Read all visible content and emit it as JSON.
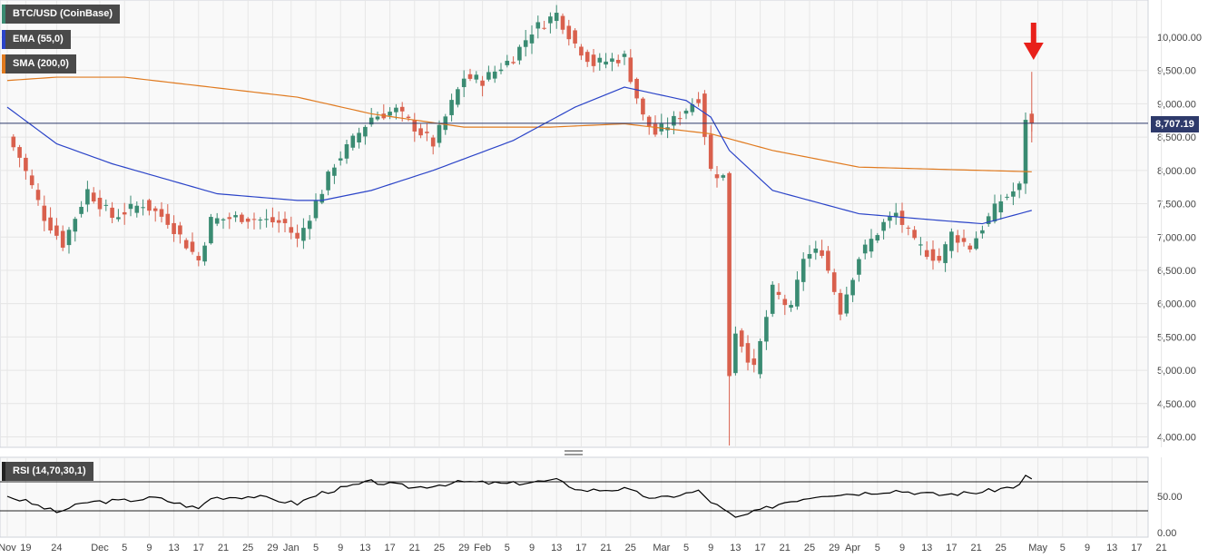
{
  "legend": {
    "symbol": "BTC/USD (CoinBase)",
    "ema": "EMA (55,0)",
    "sma": "SMA (200,0)",
    "rsi": "RSI (14,70,30,1)"
  },
  "colors": {
    "up": "#3a8b72",
    "down": "#d9604d",
    "ema": "#2b44c8",
    "sma": "#e07a1f",
    "priceLine": "#2e3a6b",
    "arrow": "#e8201a",
    "grid": "#e6e6e6"
  },
  "icons": {
    "annotation": "down-arrow-icon",
    "divider": "drag-handle-icon"
  },
  "last_price_label": "8,707.19",
  "chart_data": [
    {
      "type": "candlestick",
      "title": "BTC/USD (CoinBase)",
      "x_tick_labels": [
        "Nov",
        "19",
        "24",
        "Dec",
        "5",
        "9",
        "13",
        "17",
        "21",
        "25",
        "29",
        "Jan",
        "5",
        "9",
        "13",
        "17",
        "21",
        "25",
        "29",
        "Feb",
        "5",
        "9",
        "13",
        "17",
        "21",
        "25",
        "Mar",
        "5",
        "9",
        "13",
        "17",
        "21",
        "25",
        "29",
        "Apr",
        "5",
        "9",
        "13",
        "17",
        "21",
        "25",
        "May",
        "5",
        "9",
        "13",
        "17",
        "21"
      ],
      "y_tick_labels": [
        "10,000.00",
        "9,500.00",
        "9,000.00",
        "8,500.00",
        "8,000.00",
        "7,500.00",
        "7,000.00",
        "6,500.00",
        "6,000.00",
        "5,500.00",
        "5,000.00",
        "4,500.00",
        "4,000.00"
      ],
      "ylim": [
        3900,
        10550
      ],
      "grid": true,
      "close_waypoints": [
        [
          "2019-11-16",
          8500
        ],
        [
          "2019-11-18",
          8200
        ],
        [
          "2019-11-22",
          7300
        ],
        [
          "2019-11-25",
          6900
        ],
        [
          "2019-11-29",
          7700
        ],
        [
          "2019-12-03",
          7300
        ],
        [
          "2019-12-08",
          7500
        ],
        [
          "2019-12-12",
          7250
        ],
        [
          "2019-12-17",
          6650
        ],
        [
          "2019-12-19",
          7250
        ],
        [
          "2019-12-24",
          7300
        ],
        [
          "2019-12-31",
          7200
        ],
        [
          "2020-01-02",
          6950
        ],
        [
          "2020-01-06",
          7700
        ],
        [
          "2020-01-08",
          8100
        ],
        [
          "2020-01-14",
          8800
        ],
        [
          "2020-01-18",
          8900
        ],
        [
          "2020-01-24",
          8400
        ],
        [
          "2020-01-29",
          9400
        ],
        [
          "2020-02-01",
          9350
        ],
        [
          "2020-02-06",
          9700
        ],
        [
          "2020-02-09",
          10100
        ],
        [
          "2020-02-13",
          10350
        ],
        [
          "2020-02-16",
          9900
        ],
        [
          "2020-02-19",
          9600
        ],
        [
          "2020-02-24",
          9700
        ],
        [
          "2020-02-27",
          8800
        ],
        [
          "2020-02-29",
          8550
        ],
        [
          "2020-03-03",
          8750
        ],
        [
          "2020-03-07",
          9100
        ],
        [
          "2020-03-09",
          8000
        ],
        [
          "2020-03-11",
          7900
        ],
        [
          "2020-03-12",
          4950
        ],
        [
          "2020-03-13",
          5600
        ],
        [
          "2020-03-16",
          5000
        ],
        [
          "2020-03-19",
          6200
        ],
        [
          "2020-03-22",
          5900
        ],
        [
          "2020-03-24",
          6700
        ],
        [
          "2020-03-27",
          6800
        ],
        [
          "2020-03-30",
          5900
        ],
        [
          "2020-04-02",
          6700
        ],
        [
          "2020-04-06",
          7200
        ],
        [
          "2020-04-08",
          7350
        ],
        [
          "2020-04-11",
          6900
        ],
        [
          "2020-04-15",
          6650
        ],
        [
          "2020-04-17",
          7050
        ],
        [
          "2020-04-20",
          6850
        ],
        [
          "2020-04-22",
          7150
        ],
        [
          "2020-04-25",
          7550
        ],
        [
          "2020-04-28",
          7750
        ],
        [
          "2020-04-29",
          8800
        ],
        [
          "2020-04-30",
          8707
        ]
      ],
      "ema_55": [
        [
          "2019-11-16",
          8950
        ],
        [
          "2019-11-24",
          8400
        ],
        [
          "2019-12-03",
          8100
        ],
        [
          "2019-12-20",
          7650
        ],
        [
          "2020-01-02",
          7550
        ],
        [
          "2020-01-06",
          7550
        ],
        [
          "2020-01-14",
          7700
        ],
        [
          "2020-01-24",
          8000
        ],
        [
          "2020-02-06",
          8450
        ],
        [
          "2020-02-16",
          8950
        ],
        [
          "2020-02-24",
          9250
        ],
        [
          "2020-03-05",
          9050
        ],
        [
          "2020-03-09",
          8800
        ],
        [
          "2020-03-12",
          8300
        ],
        [
          "2020-03-19",
          7700
        ],
        [
          "2020-04-02",
          7350
        ],
        [
          "2020-04-15",
          7250
        ],
        [
          "2020-04-22",
          7200
        ],
        [
          "2020-04-30",
          7400
        ]
      ],
      "sma_200": [
        [
          "2019-11-16",
          9350
        ],
        [
          "2019-11-24",
          9400
        ],
        [
          "2019-12-05",
          9400
        ],
        [
          "2020-01-02",
          9100
        ],
        [
          "2020-01-14",
          8850
        ],
        [
          "2020-01-29",
          8650
        ],
        [
          "2020-02-12",
          8650
        ],
        [
          "2020-02-24",
          8700
        ],
        [
          "2020-03-09",
          8550
        ],
        [
          "2020-03-19",
          8300
        ],
        [
          "2020-04-02",
          8050
        ],
        [
          "2020-04-30",
          7980
        ]
      ],
      "last_price": 8707.19
    },
    {
      "type": "line",
      "title": "RSI (14,70,30,1)",
      "y_tick_labels": [
        "50.00",
        "0.00"
      ],
      "ylim": [
        0,
        100
      ],
      "levels": [
        70,
        30
      ],
      "values": [
        [
          "2019-11-16",
          50
        ],
        [
          "2019-11-19",
          43
        ],
        [
          "2019-11-24",
          28
        ],
        [
          "2019-11-29",
          42
        ],
        [
          "2019-12-05",
          44
        ],
        [
          "2019-12-10",
          48
        ],
        [
          "2019-12-17",
          33
        ],
        [
          "2019-12-19",
          48
        ],
        [
          "2019-12-26",
          50
        ],
        [
          "2020-01-02",
          40
        ],
        [
          "2020-01-06",
          55
        ],
        [
          "2020-01-14",
          70
        ],
        [
          "2020-01-21",
          62
        ],
        [
          "2020-01-29",
          70
        ],
        [
          "2020-02-05",
          67
        ],
        [
          "2020-02-13",
          72
        ],
        [
          "2020-02-17",
          58
        ],
        [
          "2020-02-24",
          60
        ],
        [
          "2020-02-29",
          46
        ],
        [
          "2020-03-07",
          57
        ],
        [
          "2020-03-09",
          43
        ],
        [
          "2020-03-13",
          20
        ],
        [
          "2020-03-16",
          28
        ],
        [
          "2020-03-21",
          42
        ],
        [
          "2020-03-27",
          52
        ],
        [
          "2020-04-02",
          54
        ],
        [
          "2020-04-08",
          58
        ],
        [
          "2020-04-15",
          52
        ],
        [
          "2020-04-22",
          56
        ],
        [
          "2020-04-28",
          65
        ],
        [
          "2020-04-29",
          78
        ],
        [
          "2020-04-30",
          74
        ]
      ]
    }
  ]
}
